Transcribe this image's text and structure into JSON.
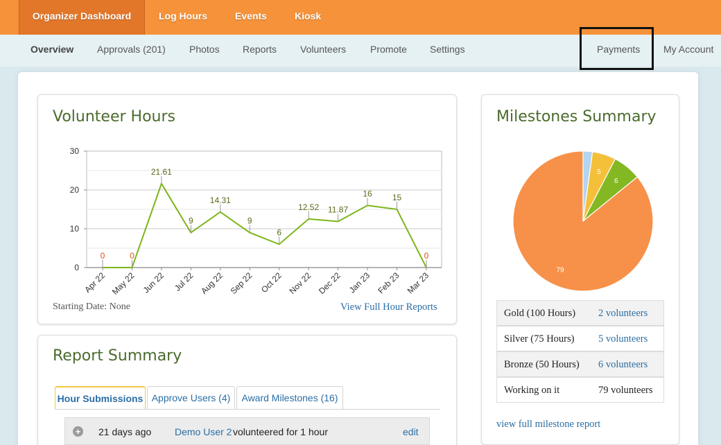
{
  "topnav": {
    "tabs": [
      {
        "label": "Organizer Dashboard"
      },
      {
        "label": "Log Hours"
      },
      {
        "label": "Events"
      },
      {
        "label": "Kiosk"
      }
    ]
  },
  "subnav": {
    "items": [
      {
        "label": "Overview"
      },
      {
        "label": "Approvals (201)"
      },
      {
        "label": "Photos"
      },
      {
        "label": "Reports"
      },
      {
        "label": "Volunteers"
      },
      {
        "label": "Promote"
      },
      {
        "label": "Settings"
      },
      {
        "label": "Payments"
      },
      {
        "label": "My Account"
      }
    ]
  },
  "volunteer_hours": {
    "title": "Volunteer Hours",
    "starting_date": "Starting Date: None",
    "report_link": "View Full Hour Reports"
  },
  "milestones": {
    "title": "Milestones Summary",
    "rows": [
      {
        "label": "Gold (100 Hours)",
        "value": "2 volunteers"
      },
      {
        "label": "Silver (75 Hours)",
        "value": "5 volunteers"
      },
      {
        "label": "Bronze (50 Hours)",
        "value": "6 volunteers"
      },
      {
        "label": "Working on it",
        "value": "79 volunteers"
      }
    ],
    "report_link": "view full milestone report"
  },
  "report_summary": {
    "title": "Report Summary",
    "tabs": [
      {
        "label": "Hour Submissions"
      },
      {
        "label": "Approve Users (4)"
      },
      {
        "label": "Award Milestones (16)"
      }
    ],
    "rows": [
      {
        "time": "21 days ago",
        "user": "Demo User 2",
        "action": "volunteered for 1 hour",
        "edit": "edit"
      }
    ]
  },
  "colors": {
    "brand": "#f5923a",
    "line": "#7cb518",
    "gold": "#f4c03a",
    "silver": "#b3d5f0",
    "bronze": "#84b823",
    "working": "#f79149"
  },
  "chart_data": [
    {
      "type": "line",
      "categories": [
        "Apr 22",
        "May 22",
        "Jun 22",
        "Jul 22",
        "Aug 22",
        "Sep 22",
        "Oct 22",
        "Nov 22",
        "Dec 22",
        "Jan 23",
        "Feb 23",
        "Mar 23"
      ],
      "values": [
        0,
        0,
        21.61,
        9,
        14.31,
        9,
        6,
        12.52,
        11.87,
        16,
        15,
        0
      ],
      "value_labels": [
        "0",
        "0",
        "21.61",
        "9",
        "14.31",
        "9",
        "6",
        "12.52",
        "11.87",
        "16",
        "15",
        "0"
      ],
      "ylim": [
        0,
        30
      ],
      "yticks": [
        "0",
        "10",
        "20",
        "30"
      ],
      "grid": true
    },
    {
      "type": "pie",
      "categories": [
        "Gold",
        "Silver",
        "Bronze",
        "Working on it"
      ],
      "values": [
        2,
        5,
        6,
        79
      ],
      "labels": [
        "",
        "5",
        "6",
        "79"
      ]
    }
  ]
}
